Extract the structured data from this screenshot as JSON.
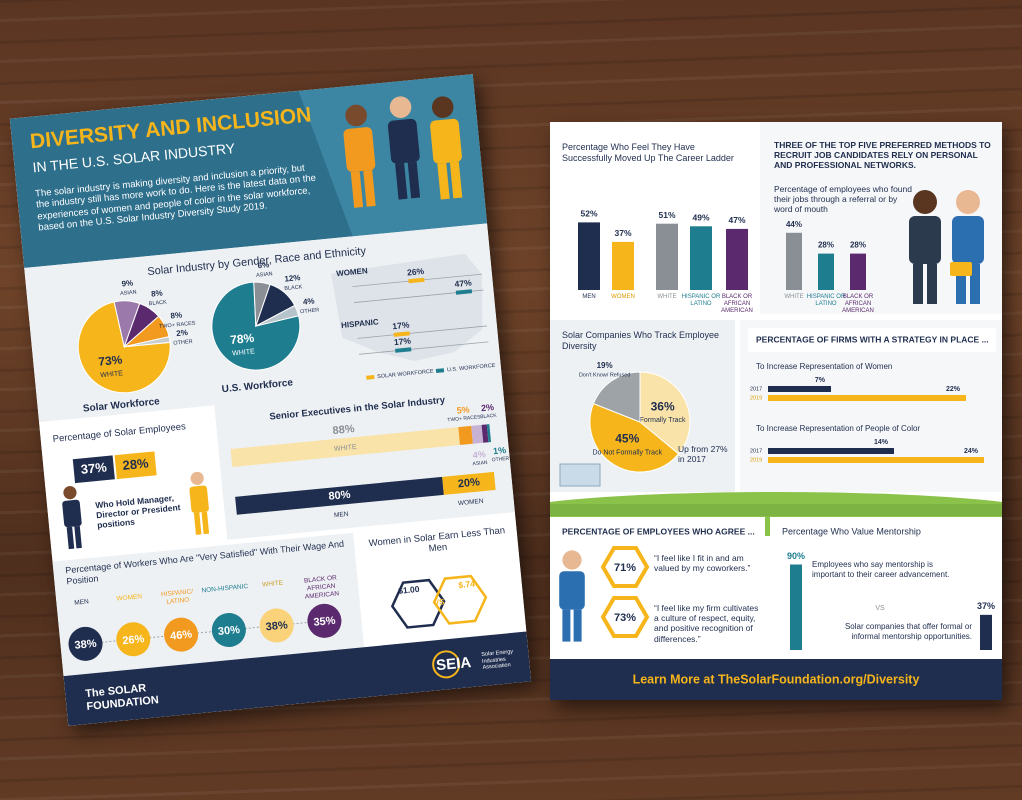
{
  "left": {
    "header": {
      "title": "DIVERSITY AND INCLUSION",
      "subtitle": "IN THE U.S. SOLAR INDUSTRY",
      "intro": "The solar industry is making diversity and inclusion a priority, but the industry still has more work to do. Here is the latest data on the experiences of women and people of color in the solar workforce, based on the U.S. Solar Industry Diversity Study 2019."
    },
    "composition": {
      "title": "Solar Industry by Gender, Race and Ethnicity",
      "pies": [
        {
          "name": "Solar Workforce",
          "categories": [
            "WHITE",
            "ASIAN",
            "BLACK",
            "TWO+ RACES",
            "OTHER"
          ],
          "values": [
            73,
            9,
            8,
            8,
            2
          ],
          "value_labels": [
            "73%",
            "9%",
            "8%",
            "8%",
            "2%"
          ],
          "colors": [
            "#f5b51b",
            "#9b7aab",
            "#5b2a6e",
            "#f29a1f",
            "#c9cdd1"
          ]
        },
        {
          "name": "U.S. Workforce",
          "categories": [
            "WHITE",
            "ASIAN",
            "BLACK",
            "OTHER"
          ],
          "values": [
            78,
            6,
            12,
            4
          ],
          "value_labels": [
            "78%",
            "6%",
            "12%",
            "4%"
          ],
          "colors": [
            "#1e7d8f",
            "#8a8f95",
            "#1f2d4e",
            "#b7c3cb"
          ]
        }
      ],
      "gender_race": {
        "categories": [
          "WOMEN",
          "HISPANIC"
        ],
        "series": [
          {
            "name": "SOLAR WORKFORCE",
            "color": "#f5b51b",
            "values": [
              26,
              17
            ],
            "value_labels": [
              "26%",
              "17%"
            ]
          },
          {
            "name": "U.S. WORKFORCE",
            "color": "#1e7d8f",
            "values": [
              47,
              17
            ],
            "value_labels": [
              "47%",
              "17%"
            ]
          }
        ]
      }
    },
    "employees": {
      "title": "Percentage of Solar Employees",
      "values": [
        37,
        28
      ],
      "value_labels": [
        "37%",
        "28%"
      ],
      "colors": [
        "#1f2d4e",
        "#f5b51b"
      ],
      "caption": "Who Hold Manager, Director or President positions"
    },
    "executives": {
      "title": "Senior Executives in the Solar Industry",
      "race": {
        "categories": [
          "WHITE",
          "TWO+ RACES",
          "ASIAN",
          "BLACK",
          "OTHER"
        ],
        "values": [
          88,
          5,
          4,
          2,
          1
        ],
        "value_labels": [
          "88%",
          "5%",
          "4%",
          "2%",
          "1%"
        ],
        "colors": [
          "#f9e3a8",
          "#f29a1f",
          "#c7b2d4",
          "#5b2a6e",
          "#1e7d8f"
        ]
      },
      "gender": {
        "categories": [
          "MEN",
          "WOMEN"
        ],
        "values": [
          80,
          20
        ],
        "value_labels": [
          "80%",
          "20%"
        ],
        "colors": [
          "#1f2d4e",
          "#f5b51b"
        ]
      }
    },
    "satisfaction": {
      "title": "Percentage of Workers Who Are \"Very Satisfied\" With Their Wage And Position",
      "categories": [
        "MEN",
        "WOMEN",
        "HISPANIC/ LATINO",
        "NON-HISPANIC",
        "WHITE",
        "BLACK OR AFRICAN AMERICAN"
      ],
      "values": [
        38,
        26,
        46,
        30,
        38,
        35
      ],
      "value_labels": [
        "38%",
        "26%",
        "46%",
        "30%",
        "38%",
        "35%"
      ],
      "colors": [
        "#1f2d4e",
        "#f5b51b",
        "#f29a1f",
        "#1e7d8f",
        "#f9d27a",
        "#5b2a6e"
      ]
    },
    "earnings": {
      "title": "Women in Solar Earn Less Than Men",
      "men": "$1.00",
      "vs": "VS",
      "women": "$.74"
    },
    "footer": {
      "foundation": "The SOLAR FOUNDATION",
      "seia": "SEIA",
      "seia_text": "Solar Energy Industries Association"
    }
  },
  "right": {
    "career": {
      "title": "Percentage Who Feel They Have Successfully Moved Up The Career Ladder",
      "categories": [
        "MEN",
        "WOMEN",
        "WHITE",
        "HISPANIC OR LATINO",
        "BLACK OR AFRICAN AMERICAN"
      ],
      "values": [
        52,
        37,
        51,
        49,
        47
      ],
      "value_labels": [
        "52%",
        "37%",
        "51%",
        "49%",
        "47%"
      ],
      "colors": [
        "#1f2d4e",
        "#f5b51b",
        "#8a8f95",
        "#1e7d8f",
        "#5b2a6e"
      ]
    },
    "recruit": {
      "heading": "THREE OF THE TOP FIVE PREFERRED METHODS TO RECRUIT JOB CANDIDATES RELY ON PERSONAL AND PROFESSIONAL NETWORKS.",
      "title": "Percentage of employees who found their jobs through a referral or by word of mouth",
      "categories": [
        "WHITE",
        "HISPANIC OR LATINO",
        "BLACK OR AFRICAN AMERICAN"
      ],
      "values": [
        44,
        28,
        28
      ],
      "value_labels": [
        "44%",
        "28%",
        "28%"
      ],
      "colors": [
        "#8a8f95",
        "#1e7d8f",
        "#5b2a6e"
      ]
    },
    "tracking": {
      "title": "Solar Companies Who Track Employee Diversity",
      "categories": [
        "Formally Track",
        "Do Not Formally Track",
        "Don't Know/ Refused"
      ],
      "values": [
        36,
        45,
        19
      ],
      "value_labels": [
        "36%",
        "45%",
        "19%"
      ],
      "colors": [
        "#f9e3a8",
        "#f5b51b",
        "#9ea3a8"
      ],
      "note": "Up from 27% in 2017"
    },
    "strategy": {
      "title": "PERCENTAGE OF FIRMS WITH A STRATEGY IN PLACE ...",
      "groups": [
        {
          "name": "To Increase Representation of Women",
          "years": [
            "2017",
            "2019"
          ],
          "values": [
            7,
            22
          ],
          "value_labels": [
            "7%",
            "22%"
          ]
        },
        {
          "name": "To Increase Representation of People of Color",
          "years": [
            "2017",
            "2019"
          ],
          "values": [
            14,
            24
          ],
          "value_labels": [
            "14%",
            "24%"
          ]
        }
      ],
      "colors": [
        "#1f2d4e",
        "#f5b51b"
      ]
    },
    "agree": {
      "title": "PERCENTAGE OF EMPLOYEES WHO AGREE ...",
      "values": [
        71,
        73
      ],
      "value_labels": [
        "71%",
        "73%"
      ],
      "quotes": [
        "“I feel like I fit in and am valued by my coworkers.”",
        "“I feel like my firm cultivates a culture of respect, equity, and positive recognition of differences.”"
      ]
    },
    "mentorship": {
      "title": "Percentage Who Value Mentorship",
      "values": [
        90,
        37
      ],
      "value_labels": [
        "90%",
        "37%"
      ],
      "colors": [
        "#1e7d8f",
        "#1f2d4e"
      ],
      "texts": [
        "Employees who say mentorship is important to their career advancement.",
        "Solar companies that offer formal or informal mentorship opportunities."
      ],
      "vs": "VS"
    },
    "footer": "Learn More at TheSolarFoundation.org/Diversity"
  }
}
